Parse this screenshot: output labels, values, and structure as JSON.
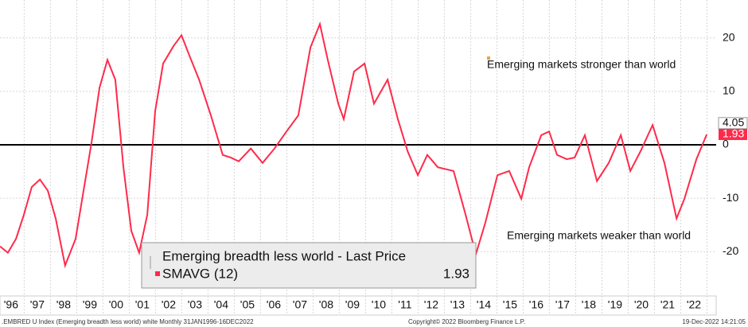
{
  "chart_data": {
    "type": "line",
    "x": [
      1996.0,
      1996.3,
      1996.61,
      1996.91,
      1997.21,
      1997.52,
      1997.82,
      1998.12,
      1998.48,
      1998.88,
      1999.18,
      1999.48,
      1999.79,
      2000.09,
      2000.39,
      2000.7,
      2001.0,
      2001.3,
      2001.61,
      2001.91,
      2002.21,
      2002.61,
      2002.91,
      2003.21,
      2003.58,
      2004.03,
      2004.48,
      2004.79,
      2005.09,
      2005.55,
      2006.0,
      2006.45,
      2006.91,
      2007.36,
      2007.82,
      2008.18,
      2008.48,
      2008.88,
      2009.09,
      2009.48,
      2009.88,
      2010.24,
      2010.76,
      2011.15,
      2011.52,
      2011.91,
      2012.27,
      2012.67,
      2013.27,
      2013.73,
      2014.12,
      2014.48,
      2014.94,
      2015.39,
      2015.85,
      2016.15,
      2016.61,
      2016.91,
      2017.21,
      2017.58,
      2017.88,
      2018.27,
      2018.73,
      2019.18,
      2019.64,
      2020.0,
      2020.39,
      2020.85,
      2021.3,
      2021.76,
      2022.06,
      2022.52,
      2022.91
    ],
    "series": [
      {
        "name": "SMAVG (12)",
        "color": "#ff2a4a",
        "values": [
          -19.0,
          -20.2,
          -17.6,
          -13.1,
          -7.9,
          -6.5,
          -8.6,
          -13.8,
          -22.6,
          -17.6,
          -8.6,
          0.3,
          10.7,
          15.9,
          12.2,
          -4.2,
          -16.1,
          -20.2,
          -13.1,
          6.3,
          15.2,
          18.5,
          20.5,
          16.7,
          12.2,
          5.5,
          -1.9,
          -2.4,
          -3.1,
          -0.7,
          -3.4,
          -0.7,
          2.5,
          5.5,
          18.2,
          22.6,
          15.9,
          7.7,
          4.8,
          13.7,
          15.2,
          7.7,
          12.2,
          4.8,
          -1.2,
          -5.7,
          -1.9,
          -4.2,
          -4.9,
          -13.1,
          -20.5,
          -14.6,
          -5.7,
          -4.9,
          -10.1,
          -4.2,
          1.8,
          2.5,
          -1.9,
          -2.7,
          -2.4,
          1.8,
          -6.8,
          -3.4,
          1.8,
          -4.9,
          -1.2,
          3.7,
          -3.4,
          -13.8,
          -10.1,
          -2.7,
          1.93
        ]
      }
    ],
    "last_price": {
      "name": "Emerging breadth less world - Last Price",
      "value": 4.05
    },
    "xlim": [
      1996.0,
      2023.27
    ],
    "ylim": [
      -28.3,
      27.1
    ],
    "xticks": [
      {
        "value": 1996.42,
        "label": "'96"
      },
      {
        "value": 1997.42,
        "label": "'97"
      },
      {
        "value": 1998.42,
        "label": "'98"
      },
      {
        "value": 1999.42,
        "label": "'99"
      },
      {
        "value": 2000.42,
        "label": "'00"
      },
      {
        "value": 2001.42,
        "label": "'01"
      },
      {
        "value": 2002.42,
        "label": "'02"
      },
      {
        "value": 2003.42,
        "label": "'03"
      },
      {
        "value": 2004.42,
        "label": "'04"
      },
      {
        "value": 2005.42,
        "label": "'05"
      },
      {
        "value": 2006.42,
        "label": "'06"
      },
      {
        "value": 2007.42,
        "label": "'07"
      },
      {
        "value": 2008.42,
        "label": "'08"
      },
      {
        "value": 2009.42,
        "label": "'09"
      },
      {
        "value": 2010.42,
        "label": "'10"
      },
      {
        "value": 2011.42,
        "label": "'11"
      },
      {
        "value": 2012.42,
        "label": "'12"
      },
      {
        "value": 2013.42,
        "label": "'13"
      },
      {
        "value": 2014.42,
        "label": "'14"
      },
      {
        "value": 2015.42,
        "label": "'15"
      },
      {
        "value": 2016.42,
        "label": "'16"
      },
      {
        "value": 2017.42,
        "label": "'17"
      },
      {
        "value": 2018.42,
        "label": "'18"
      },
      {
        "value": 2019.42,
        "label": "'19"
      },
      {
        "value": 2020.42,
        "label": "'20"
      },
      {
        "value": 2021.42,
        "label": "'21"
      },
      {
        "value": 2022.42,
        "label": "'22"
      }
    ],
    "yticks": [
      20,
      10,
      0,
      -10,
      -20
    ],
    "grid": true,
    "zero_line": true,
    "annotations": [
      "Emerging markets stronger than world",
      "Emerging markets weaker than world"
    ],
    "footer": [
      ".EMBRED U Index (Emerging breadth less world) white  Monthly 31JAN1996-16DEC2022",
      "Copyright© 2022 Bloomberg Finance L.P.",
      "19-Dec-2022 14:21:05"
    ]
  }
}
